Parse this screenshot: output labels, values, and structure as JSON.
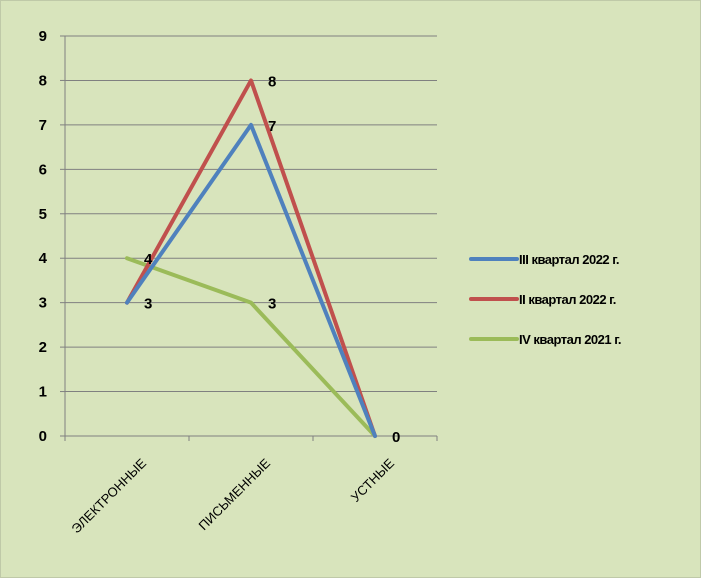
{
  "chart_data": {
    "type": "line",
    "categories": [
      "ЭЛЕКТРОННЫЕ",
      "ПИСЬМЕННЫЕ",
      "УСТНЫЕ"
    ],
    "ylim": [
      0,
      9
    ],
    "yticks": [
      "0",
      "1",
      "2",
      "3",
      "4",
      "5",
      "6",
      "7",
      "8",
      "9"
    ],
    "grid": true,
    "legend_position": "right",
    "series": [
      {
        "name": "III квартал 2022 г.",
        "values": [
          3,
          7,
          0
        ],
        "color": "#4f81bd",
        "labels": [
          "",
          "7",
          ""
        ]
      },
      {
        "name": "II квартал 2022 г.",
        "values": [
          3,
          8,
          0
        ],
        "color": "#c0504d",
        "labels": [
          "3",
          "8",
          "0"
        ]
      },
      {
        "name": "IV квартал 2021 г.",
        "values": [
          4,
          3,
          0
        ],
        "color": "#9bbb59",
        "labels": [
          "4",
          "3",
          ""
        ]
      }
    ]
  }
}
